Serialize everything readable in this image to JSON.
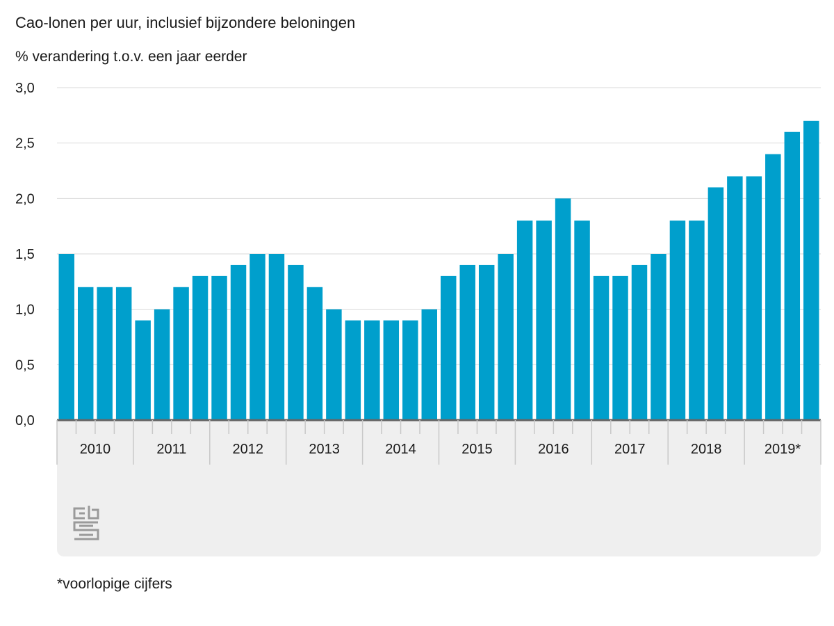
{
  "title": "Cao-lonen per uur, inclusief bijzondere beloningen",
  "subtitle": "% verandering t.o.v. een jaar eerder",
  "footnote": "*voorlopige cijfers",
  "logo_text": "cbs",
  "colors": {
    "bar": "#009fcc",
    "grid": "#d9d9d9",
    "axis": "#666666",
    "panel": "#efefef"
  },
  "chart_data": {
    "type": "bar",
    "title": "Cao-lonen per uur, inclusief bijzondere beloningen",
    "ylabel": "% verandering t.o.v. een jaar eerder",
    "xlabel": "",
    "ylim": [
      0,
      3
    ],
    "yticks": [
      "0,0",
      "0,5",
      "1,0",
      "1,5",
      "2,0",
      "2,5",
      "3,0"
    ],
    "grid": true,
    "years": [
      "2010",
      "2011",
      "2012",
      "2013",
      "2014",
      "2015",
      "2016",
      "2017",
      "2018",
      "2019*"
    ],
    "categories": [
      "2010 Q1",
      "2010 Q2",
      "2010 Q3",
      "2010 Q4",
      "2011 Q1",
      "2011 Q2",
      "2011 Q3",
      "2011 Q4",
      "2012 Q1",
      "2012 Q2",
      "2012 Q3",
      "2012 Q4",
      "2013 Q1",
      "2013 Q2",
      "2013 Q3",
      "2013 Q4",
      "2014 Q1",
      "2014 Q2",
      "2014 Q3",
      "2014 Q4",
      "2015 Q1",
      "2015 Q2",
      "2015 Q3",
      "2015 Q4",
      "2016 Q1",
      "2016 Q2",
      "2016 Q3",
      "2016 Q4",
      "2017 Q1",
      "2017 Q2",
      "2017 Q3",
      "2017 Q4",
      "2018 Q1",
      "2018 Q2",
      "2018 Q3",
      "2018 Q4",
      "2019 Q1",
      "2019 Q2",
      "2019 Q3",
      "2019 Q4"
    ],
    "values": [
      1.5,
      1.2,
      1.2,
      1.2,
      0.9,
      1.0,
      1.2,
      1.3,
      1.3,
      1.4,
      1.5,
      1.5,
      1.4,
      1.2,
      1.0,
      0.9,
      0.9,
      0.9,
      0.9,
      1.0,
      1.3,
      1.4,
      1.4,
      1.5,
      1.8,
      1.8,
      2.0,
      1.8,
      1.3,
      1.3,
      1.4,
      1.5,
      1.8,
      1.8,
      2.1,
      2.2,
      2.2,
      2.4,
      2.6,
      2.7
    ]
  }
}
